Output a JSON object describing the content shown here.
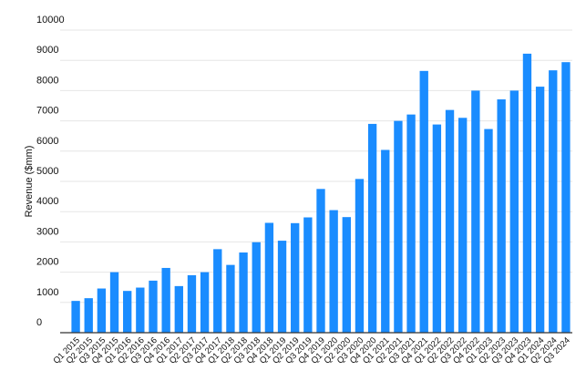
{
  "chart_data": {
    "type": "bar",
    "y_label": "Revenue ($mm)",
    "categories": [
      "Q1 2015",
      "Q2 2015",
      "Q3 2015",
      "Q4 2015",
      "Q1 2016",
      "Q2 2016",
      "Q3 2016",
      "Q4 2016",
      "Q1 2017",
      "Q2 2017",
      "Q3 2017",
      "Q4 2017",
      "Q1 2018",
      "Q2 2018",
      "Q3 2018",
      "Q4 2018",
      "Q1 2019",
      "Q2 2019",
      "Q3 2019",
      "Q4 2019",
      "Q1 2020",
      "Q2 2020",
      "Q3 2020",
      "Q4 2020",
      "Q1 2021",
      "Q2 2021",
      "Q3 2021",
      "Q4 2021",
      "Q1 2022",
      "Q2 2022",
      "Q3 2022",
      "Q4 2022",
      "Q1 2023",
      "Q2 2023",
      "Q3 2023",
      "Q4 2023",
      "Q1 2024",
      "Q2 2024",
      "Q3 2024"
    ],
    "values": [
      1050,
      1140,
      1460,
      2000,
      1380,
      1490,
      1720,
      2140,
      1540,
      1900,
      2000,
      2760,
      2240,
      2650,
      2990,
      3630,
      3040,
      3620,
      3810,
      4750,
      4050,
      3820,
      5080,
      6900,
      6040,
      7000,
      7210,
      8650,
      6880,
      7360,
      7100,
      8000,
      6730,
      7710,
      8000,
      9220,
      8130,
      8670,
      8940
    ],
    "color": "#1a8cff",
    "ylim": [
      0,
      10000
    ],
    "yticks": [
      0,
      1000,
      2000,
      3000,
      4000,
      5000,
      6000,
      7000,
      8000,
      9000,
      10000
    ],
    "grid": true
  }
}
